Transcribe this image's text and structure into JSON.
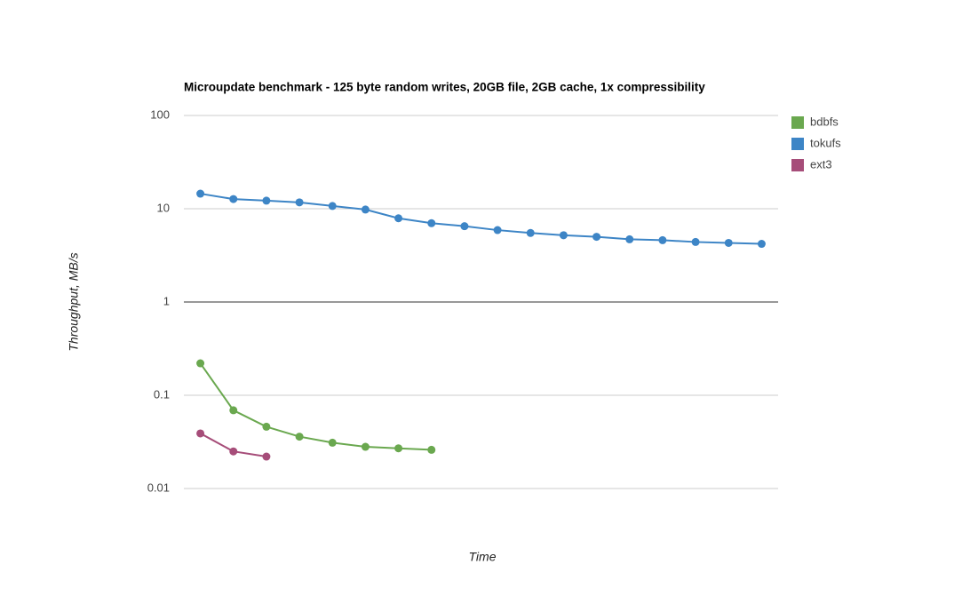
{
  "chart_data": {
    "type": "line",
    "title": "Microupdate benchmark - 125 byte random writes, 20GB file, 2GB cache, 1x compressibility",
    "xlabel": "Time",
    "ylabel": "Throughput, MB/s",
    "categories": [
      null,
      null,
      null,
      null,
      null,
      null,
      null,
      null,
      null,
      null,
      null,
      null,
      null,
      null,
      null,
      null,
      null,
      null
    ],
    "series": [
      {
        "name": "bdbfs",
        "color": "#6aa84f",
        "values": [
          0.22,
          0.069,
          0.046,
          0.036,
          0.031,
          0.028,
          0.027,
          0.026,
          null,
          null,
          null,
          null,
          null,
          null,
          null,
          null,
          null,
          null
        ]
      },
      {
        "name": "tokufs",
        "color": "#3d85c6",
        "values": [
          14.5,
          12.7,
          12.2,
          11.7,
          10.7,
          9.8,
          7.9,
          7.0,
          6.5,
          5.9,
          5.5,
          5.2,
          5.0,
          4.7,
          4.6,
          4.4,
          4.3,
          4.2
        ]
      },
      {
        "name": "ext3",
        "color": "#a64d79",
        "values": [
          0.039,
          0.025,
          0.022,
          null,
          null,
          null,
          null,
          null,
          null,
          null,
          null,
          null,
          null,
          null,
          null,
          null,
          null,
          null
        ]
      }
    ],
    "ylim": [
      0.01,
      100
    ],
    "yticks": [
      0.01,
      0.1,
      1,
      10,
      100
    ],
    "log_y": true,
    "grid": true,
    "legend": "right"
  }
}
